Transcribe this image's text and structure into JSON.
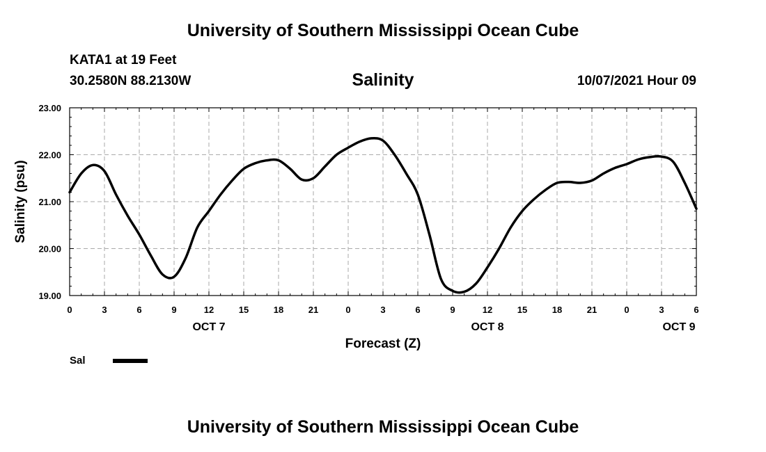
{
  "header": {
    "title": "University of Southern Mississippi Ocean Cube",
    "station": "KATA1 at 19 Feet",
    "coords": "30.2580N  88.2130W",
    "datetime": "10/07/2021 Hour 09"
  },
  "footer": {
    "title": "University of Southern Mississippi Ocean Cube"
  },
  "chart_data": {
    "type": "line",
    "title": "Salinity",
    "xlabel": "Forecast (Z)",
    "ylabel": "Salinity (psu)",
    "ylim": [
      19,
      23
    ],
    "xlim": [
      0,
      54
    ],
    "x_unit": "hours from 00Z OCT 7",
    "x_ticks": [
      0,
      3,
      6,
      9,
      12,
      15,
      18,
      21,
      24,
      27,
      30,
      33,
      36,
      39,
      42,
      45,
      48,
      51,
      54
    ],
    "x_tick_labels": [
      "0",
      "3",
      "6",
      "9",
      "12",
      "15",
      "18",
      "21",
      "0",
      "3",
      "6",
      "9",
      "12",
      "15",
      "18",
      "21",
      "0",
      "3",
      "6"
    ],
    "y_ticks": [
      19,
      20,
      21,
      22,
      23
    ],
    "y_tick_labels": [
      "19.00",
      "20.00",
      "21.00",
      "22.00",
      "23.00"
    ],
    "day_labels": [
      {
        "x": 12,
        "label": "OCT 7"
      },
      {
        "x": 36,
        "label": "OCT 8"
      },
      {
        "x": 52.5,
        "label": "OCT 9"
      }
    ],
    "grid": true,
    "legend_position": "bottom-left",
    "series": [
      {
        "name": "Sal",
        "color": "#000000",
        "x": [
          0,
          1,
          2,
          3,
          4,
          5,
          6,
          7,
          8,
          9,
          10,
          11,
          12,
          13,
          14,
          15,
          16,
          17,
          18,
          19,
          20,
          21,
          22,
          23,
          24,
          25,
          26,
          27,
          28,
          29,
          30,
          31,
          32,
          33,
          34,
          35,
          36,
          37,
          38,
          39,
          40,
          41,
          42,
          43,
          44,
          45,
          46,
          47,
          48,
          49,
          50,
          51,
          52,
          53,
          54
        ],
        "values": [
          21.2,
          21.6,
          21.78,
          21.65,
          21.15,
          20.7,
          20.3,
          19.85,
          19.45,
          19.4,
          19.8,
          20.45,
          20.8,
          21.15,
          21.45,
          21.7,
          21.82,
          21.88,
          21.88,
          21.7,
          21.47,
          21.5,
          21.75,
          22.0,
          22.15,
          22.28,
          22.35,
          22.3,
          22.0,
          21.6,
          21.15,
          20.3,
          19.35,
          19.1,
          19.08,
          19.25,
          19.6,
          20.0,
          20.45,
          20.8,
          21.05,
          21.25,
          21.4,
          21.42,
          21.4,
          21.45,
          21.6,
          21.72,
          21.8,
          21.9,
          21.95,
          21.96,
          21.85,
          21.4,
          20.85
        ]
      }
    ]
  }
}
